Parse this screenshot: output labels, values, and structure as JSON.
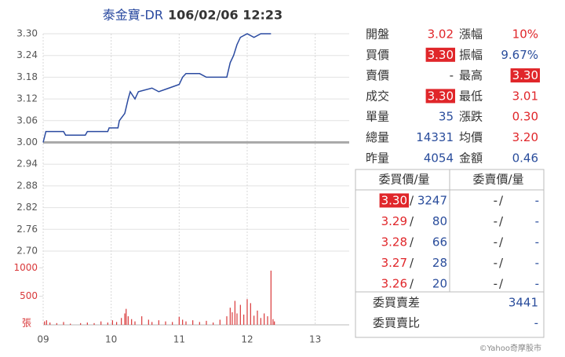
{
  "chart_data": [
    {
      "type": "line",
      "title": "泰金寶-DR",
      "subtitle": "106/02/06 12:23",
      "color": "#2a4aa0",
      "x": [
        9.0,
        9.04,
        9.3,
        9.33,
        9.62,
        9.65,
        9.95,
        9.97,
        10.1,
        10.12,
        10.2,
        10.25,
        10.28,
        10.35,
        10.4,
        10.6,
        10.7,
        10.85,
        11.0,
        11.05,
        11.1,
        11.3,
        11.4,
        11.7,
        11.75,
        11.8,
        11.85,
        11.9,
        12.0,
        12.1,
        12.2,
        12.35
      ],
      "values": [
        3.0,
        3.03,
        3.03,
        3.02,
        3.02,
        3.03,
        3.03,
        3.04,
        3.04,
        3.06,
        3.08,
        3.12,
        3.14,
        3.12,
        3.14,
        3.15,
        3.14,
        3.15,
        3.16,
        3.18,
        3.19,
        3.19,
        3.18,
        3.18,
        3.22,
        3.24,
        3.27,
        3.29,
        3.3,
        3.29,
        3.3,
        3.3
      ],
      "xlim": [
        9,
        13.5
      ],
      "ylim": [
        2.7,
        3.3
      ],
      "yticks": [
        {
          "value": 3.3,
          "label": "3.30"
        },
        3.24,
        3.18,
        3.12,
        3.06,
        {
          "value": 3,
          "label": "3.00"
        },
        2.94,
        2.88,
        2.82,
        2.76,
        {
          "value": 2.7,
          "label": "2.70"
        }
      ],
      "reference_line": 3,
      "grid": true
    },
    {
      "type": "bar",
      "ylabel": "張",
      "color": "#d9383a",
      "x": [
        9.02,
        9.05,
        9.1,
        9.2,
        9.3,
        9.4,
        9.55,
        9.65,
        9.75,
        9.85,
        9.95,
        10.02,
        10.08,
        10.15,
        10.2,
        10.22,
        10.25,
        10.3,
        10.35,
        10.45,
        10.55,
        10.6,
        10.7,
        10.8,
        10.9,
        11.0,
        11.05,
        11.1,
        11.2,
        11.3,
        11.4,
        11.5,
        11.6,
        11.7,
        11.75,
        11.78,
        11.82,
        11.85,
        11.9,
        11.95,
        12.0,
        12.05,
        12.1,
        12.15,
        12.2,
        12.25,
        12.3,
        12.35,
        12.38,
        12.4
      ],
      "values": [
        60,
        80,
        40,
        30,
        50,
        20,
        30,
        40,
        30,
        60,
        40,
        80,
        50,
        120,
        200,
        280,
        150,
        100,
        60,
        150,
        90,
        50,
        80,
        60,
        50,
        140,
        90,
        60,
        80,
        50,
        70,
        40,
        90,
        150,
        300,
        220,
        420,
        200,
        350,
        180,
        450,
        380,
        160,
        250,
        120,
        200,
        150,
        950,
        100,
        60
      ],
      "xlim": [
        9,
        13.5
      ],
      "ylim": [
        0,
        1100
      ],
      "yticks": [
        500,
        1000
      ],
      "xticks": [
        {
          "value": 9,
          "label": "09"
        },
        10,
        11,
        12,
        13
      ]
    }
  ],
  "quote": {
    "rows": [
      [
        {
          "label": "開盤",
          "value": "3.02",
          "color": "#e0262a"
        },
        {
          "label": "漲幅",
          "value": "10%",
          "color": "#e0262a"
        }
      ],
      [
        {
          "label": "買價",
          "value": "3.30",
          "color": "#ffffff",
          "highlight": true
        },
        {
          "label": "振幅",
          "value": "9.67%",
          "color": "#2a4d9c"
        }
      ],
      [
        {
          "label": "賣價",
          "value": "-",
          "color": "#333333"
        },
        {
          "label": "最高",
          "value": "3.30",
          "color": "#ffffff",
          "highlight": true
        }
      ],
      [
        {
          "label": "成交",
          "value": "3.30",
          "color": "#ffffff",
          "highlight": true
        },
        {
          "label": "最低",
          "value": "3.01",
          "color": "#e0262a"
        }
      ],
      [
        {
          "label": "單量",
          "value": "35",
          "color": "#2a4d9c"
        },
        {
          "label": "漲跌",
          "value": "0.30",
          "color": "#e0262a"
        }
      ],
      [
        {
          "label": "總量",
          "value": "14331",
          "color": "#2a4d9c"
        },
        {
          "label": "均價",
          "value": "3.20",
          "color": "#e0262a"
        }
      ],
      [
        {
          "label": "昨量",
          "value": "4054",
          "color": "#2a4d9c"
        },
        {
          "label": "金額",
          "value": "0.46",
          "color": "#2a4d9c"
        }
      ]
    ]
  },
  "order_book": {
    "headers": [
      "委買價/量",
      "委賣價/量"
    ],
    "separator": "/",
    "bids": [
      {
        "price": "3.30",
        "volume": "3247",
        "highlight": true
      },
      {
        "price": "3.29",
        "volume": "80"
      },
      {
        "price": "3.28",
        "volume": "66"
      },
      {
        "price": "3.27",
        "volume": "28"
      },
      {
        "price": "3.26",
        "volume": "20"
      }
    ],
    "asks": [
      {
        "price": "-",
        "volume": "-"
      },
      {
        "price": "-",
        "volume": "-"
      },
      {
        "price": "-",
        "volume": "-"
      },
      {
        "price": "-",
        "volume": "-"
      },
      {
        "price": "-",
        "volume": "-"
      }
    ]
  },
  "summary": [
    {
      "label": "委買賣差",
      "value": "3441"
    },
    {
      "label": "委買賣比",
      "value": "-"
    }
  ],
  "footer": "©Yahoo奇摩股市"
}
